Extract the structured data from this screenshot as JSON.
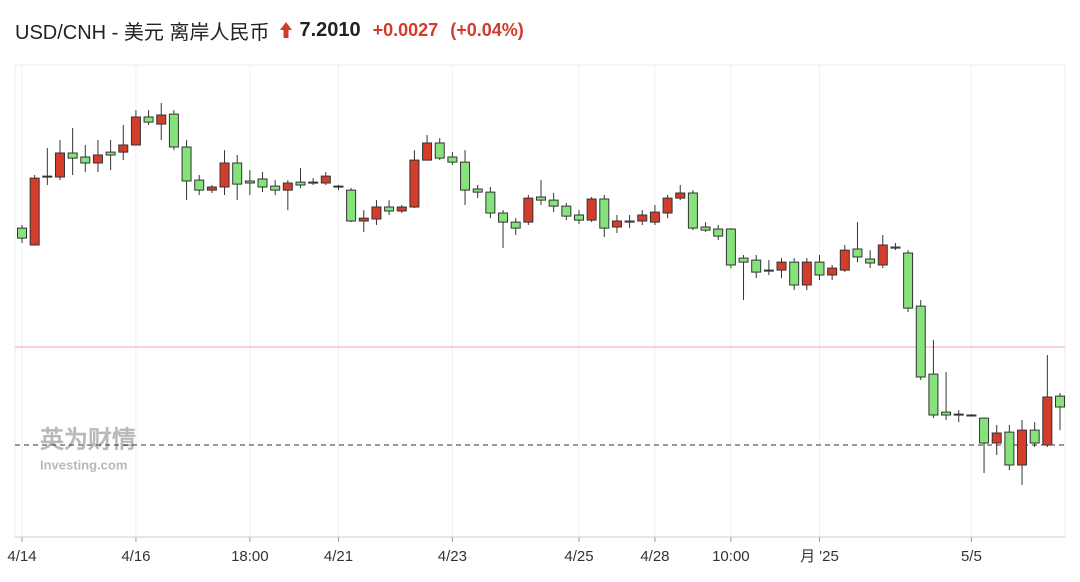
{
  "chart_data": {
    "type": "candlestick",
    "title": "USD/CNH - 美元 离岸人民币",
    "price": "7.2010",
    "change": "+0.0027",
    "change_percent": "(+0.04%)",
    "watermark": "英为财情",
    "watermark_sub": "Investing.com",
    "up_color": "#d43c2c",
    "down_color": "#86e27a",
    "categories": [
      "4/14",
      null,
      null,
      null,
      null,
      null,
      null,
      null,
      null,
      "4/16",
      null,
      null,
      null,
      null,
      null,
      null,
      null,
      null,
      "18:00",
      null,
      null,
      null,
      null,
      null,
      null,
      "4/21",
      null,
      null,
      null,
      null,
      null,
      null,
      null,
      null,
      "4/23",
      null,
      null,
      null,
      null,
      null,
      null,
      null,
      null,
      null,
      "4/25",
      null,
      null,
      null,
      null,
      null,
      "4/28",
      null,
      null,
      null,
      null,
      null,
      "10:00",
      null,
      null,
      null,
      null,
      null,
      null,
      "月 '25",
      null,
      null,
      null,
      null,
      null,
      null,
      null,
      null,
      null,
      null,
      null,
      "5/5",
      null,
      null,
      null,
      null,
      null,
      null,
      null
    ],
    "open": [
      7.2924,
      7.2848,
      7.3158,
      7.3154,
      7.3262,
      7.3244,
      7.3217,
      7.3266,
      7.3266,
      7.3298,
      7.3424,
      7.3392,
      7.3437,
      7.3289,
      7.314,
      7.3095,
      7.3109,
      7.3217,
      7.3136,
      7.3145,
      7.3113,
      7.3095,
      7.3131,
      7.3127,
      7.3127,
      7.3113,
      7.3095,
      7.2956,
      7.2965,
      7.3019,
      7.3001,
      7.3019,
      7.323,
      7.3307,
      7.3244,
      7.3221,
      7.31,
      7.3086,
      7.2992,
      7.2951,
      7.2951,
      7.3064,
      7.305,
      7.3023,
      7.2983,
      7.296,
      7.3055,
      7.2929,
      7.2956,
      7.2956,
      7.2951,
      7.2992,
      7.3059,
      7.3082,
      7.2929,
      7.292,
      7.292,
      7.2789,
      7.278,
      7.2731,
      7.2735,
      7.2771,
      7.2668,
      7.2771,
      7.2713,
      7.2735,
      7.283,
      7.2785,
      7.2758,
      7.2839,
      7.2812,
      7.2573,
      7.2267,
      7.2096,
      7.2087,
      7.2083,
      7.2069,
      7.1957,
      7.2006,
      7.1858,
      7.2015,
      7.1948,
      7.2168
    ],
    "high": [
      7.2938,
      7.3163,
      7.3284,
      7.332,
      7.3374,
      7.3298,
      7.332,
      7.332,
      7.3388,
      7.3455,
      7.3455,
      7.3487,
      7.3455,
      7.332,
      7.3163,
      7.3118,
      7.3275,
      7.3253,
      7.3185,
      7.3176,
      7.314,
      7.314,
      7.3194,
      7.3149,
      7.3176,
      7.3118,
      7.3104,
      7.3005,
      7.305,
      7.305,
      7.3028,
      7.3275,
      7.3343,
      7.3329,
      7.3266,
      7.3275,
      7.3118,
      7.3109,
      7.3005,
      7.2969,
      7.3073,
      7.314,
      7.3082,
      7.3037,
      7.3005,
      7.3064,
      7.3073,
      7.2983,
      7.2983,
      7.3005,
      7.3028,
      7.3073,
      7.3118,
      7.3095,
      7.2951,
      7.2938,
      7.2924,
      7.2803,
      7.2803,
      7.278,
      7.2789,
      7.2789,
      7.2789,
      7.2803,
      7.2758,
      7.2848,
      7.2951,
      7.2825,
      7.2893,
      7.2857,
      7.2825,
      7.26,
      7.242,
      7.2276,
      7.2105,
      7.2087,
      7.2069,
      7.2038,
      7.2038,
      7.206,
      7.2051,
      7.2353,
      7.2182
    ],
    "low": [
      7.2857,
      7.2848,
      7.3118,
      7.314,
      7.3163,
      7.3176,
      7.3176,
      7.3185,
      7.323,
      7.3298,
      7.3388,
      7.332,
      7.3275,
      7.305,
      7.3073,
      7.3082,
      7.3073,
      7.305,
      7.3073,
      7.3086,
      7.3073,
      7.3005,
      7.3104,
      7.3118,
      7.3118,
      7.3095,
      7.2951,
      7.2906,
      7.2938,
      7.2983,
      7.2992,
      7.3014,
      7.323,
      7.323,
      7.3208,
      7.3028,
      7.3059,
      7.2969,
      7.2834,
      7.2893,
      7.2938,
      7.3028,
      7.2996,
      7.296,
      7.2942,
      7.2951,
      7.2884,
      7.2902,
      7.2924,
      7.2938,
      7.2938,
      7.2969,
      7.305,
      7.2915,
      7.2906,
      7.287,
      7.2744,
      7.26,
      7.2699,
      7.2713,
      7.2699,
      7.2645,
      7.2645,
      7.269,
      7.269,
      7.2726,
      7.2771,
      7.2744,
      7.2744,
      7.2825,
      7.2546,
      7.224,
      7.2069,
      7.206,
      7.2051,
      7.2078,
      7.1822,
      7.1903,
      7.1835,
      7.1768,
      7.1939,
      7.1939,
      7.2015
    ],
    "close": [
      7.2879,
      7.3149,
      7.3154,
      7.3262,
      7.3239,
      7.3217,
      7.3253,
      7.3253,
      7.3298,
      7.3424,
      7.3401,
      7.3433,
      7.3289,
      7.3136,
      7.3095,
      7.3109,
      7.3217,
      7.3122,
      7.3127,
      7.3109,
      7.3095,
      7.3127,
      7.3118,
      7.3131,
      7.3158,
      7.3109,
      7.2956,
      7.2969,
      7.3019,
      7.3001,
      7.3019,
      7.323,
      7.3307,
      7.3239,
      7.3221,
      7.3095,
      7.3086,
      7.2992,
      7.2951,
      7.2924,
      7.3059,
      7.305,
      7.3023,
      7.2978,
      7.296,
      7.3055,
      7.2924,
      7.2956,
      7.2951,
      7.2983,
      7.2996,
      7.3059,
      7.3082,
      7.2924,
      7.2915,
      7.2888,
      7.2758,
      7.2771,
      7.2726,
      7.2735,
      7.2771,
      7.2668,
      7.2771,
      7.2713,
      7.2744,
      7.2825,
      7.2794,
      7.2767,
      7.2848,
      7.2834,
      7.2564,
      7.2254,
      7.2083,
      7.2083,
      7.2083,
      7.2083,
      7.1957,
      7.2002,
      7.1858,
      7.2015,
      7.1957,
      7.2164,
      7.2119
    ],
    "reference_lines": [
      {
        "value": 7.2389,
        "color": "#f3aaa2",
        "style": "solid"
      },
      {
        "value": 7.1948,
        "color": "#333333",
        "style": "dashed"
      }
    ],
    "ylim": [
      7.1534,
      7.3658
    ]
  }
}
